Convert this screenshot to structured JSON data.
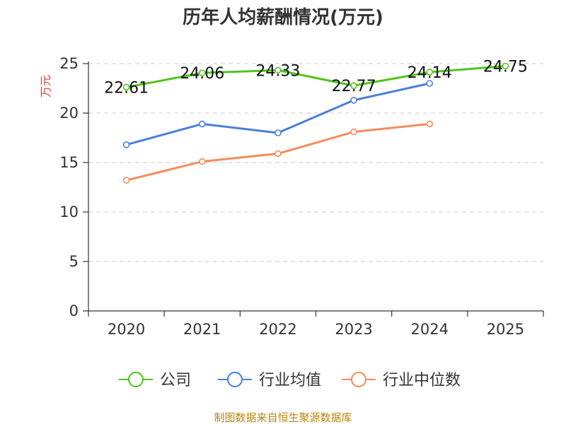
{
  "chart_data": {
    "type": "line",
    "title": "历年人均薪酬情况(万元)",
    "ylabel": "万元",
    "xlabel": "",
    "categories": [
      "2020",
      "2021",
      "2022",
      "2023",
      "2024",
      "2025"
    ],
    "ylim": [
      0,
      25
    ],
    "yticks": [
      0,
      5,
      10,
      15,
      20,
      25
    ],
    "grid": true,
    "legend_position": "bottom",
    "series": [
      {
        "name": "公司",
        "color": "#52c41a",
        "values": [
          22.61,
          24.06,
          24.33,
          22.77,
          24.14,
          24.75
        ],
        "labels": [
          "22.61",
          "24.06",
          "24.33",
          "22.77",
          "24.14",
          "24.75"
        ]
      },
      {
        "name": "行业均值",
        "color": "#4a7fdc",
        "values": [
          16.8,
          18.9,
          18.0,
          21.3,
          23.0,
          null
        ]
      },
      {
        "name": "行业中位数",
        "color": "#f58c5a",
        "values": [
          13.2,
          15.1,
          15.9,
          18.1,
          18.9,
          null
        ]
      }
    ]
  },
  "footer": {
    "source": "制图数据来自恒生聚源数据库"
  }
}
